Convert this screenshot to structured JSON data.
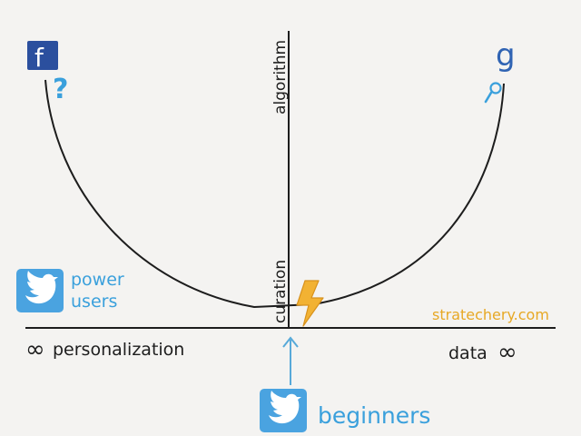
{
  "axis": {
    "vertical_top_label": "algorithm",
    "vertical_bottom_label": "curation",
    "left_label": "personalization",
    "left_symbol": "∞",
    "right_label": "data",
    "right_symbol": "∞"
  },
  "callouts": {
    "power_users_line1": "power",
    "power_users_line2": "users",
    "beginners": "beginners",
    "question_mark": "?"
  },
  "brands": {
    "facebook_letter": "f",
    "google_letter": "g",
    "watermark": "stratechery.com"
  },
  "icons": {
    "facebook": "facebook-logo-icon",
    "google": "google-logo-icon",
    "twitter_power_users": "twitter-bird-icon",
    "twitter_beginners": "twitter-bird-icon",
    "lightning": "lightning-bolt-icon",
    "magnifier": "magnifier-icon",
    "arrow": "arrow-up-icon"
  },
  "colors": {
    "background": "#f4f3f1",
    "ink": "#1d1d1d",
    "facebook_blue": "#2b4f9e",
    "twitter_blue": "#4aa3e0",
    "google_blue": "#2f63b3",
    "lightning_orange": "#f2b233",
    "watermark_gold": "#e7a825",
    "label_blue": "#3aa0dc",
    "arrow_blue": "#57a9d9"
  }
}
